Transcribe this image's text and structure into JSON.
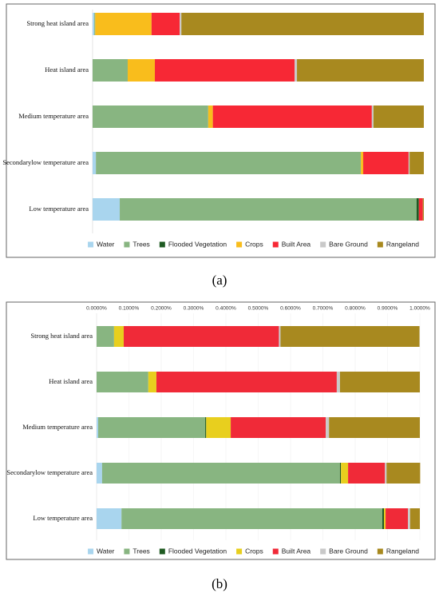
{
  "chart_data": [
    {
      "type": "bar",
      "orientation": "horizontal",
      "stacked": true,
      "caption": "(a)",
      "categories": [
        "Strong heat island area",
        "Heat island area",
        "Medium temperature area",
        "Secondarylow temperature area",
        "Low temperature area"
      ],
      "xlim": [
        0,
        100
      ],
      "series": [
        {
          "name": "Water",
          "color": "#a9d5ee",
          "values": [
            0.5,
            0,
            0,
            1,
            8.2
          ]
        },
        {
          "name": "Trees",
          "color": "#88b581",
          "values": [
            0.3,
            10.6,
            34.9,
            80,
            89.6
          ]
        },
        {
          "name": "Flooded Vegetation",
          "color": "#1f5a22",
          "values": [
            0,
            0,
            0,
            0,
            0.7
          ]
        },
        {
          "name": "Crops",
          "color": "#f9bd1c",
          "values": [
            17,
            8.2,
            1.4,
            0.7,
            0
          ]
        },
        {
          "name": "Built Area",
          "color": "#f72835",
          "values": [
            8.5,
            42.2,
            48,
            13.7,
            1.2
          ]
        },
        {
          "name": "Bare Ground",
          "color": "#c9c9c9",
          "values": [
            0.5,
            0.7,
            0.5,
            0.3,
            0
          ]
        },
        {
          "name": "Rangeland",
          "color": "#a8891f",
          "values": [
            73.2,
            38.3,
            15.2,
            4.3,
            0.3
          ]
        }
      ]
    },
    {
      "type": "bar",
      "orientation": "horizontal",
      "stacked": true,
      "caption": "(b)",
      "categories": [
        "Strong heat island area",
        "Heat island area",
        "Medium temperature area",
        "Secondarylow temperature area",
        "Low temperature area"
      ],
      "xlim": [
        0,
        1
      ],
      "xticks": [
        {
          "value": 0,
          "label": "0.0000%"
        },
        {
          "value": 0.1,
          "label": "0.1000%"
        },
        {
          "value": 0.2,
          "label": "0.2000%"
        },
        {
          "value": 0.3,
          "label": "0.3000%"
        },
        {
          "value": 0.4,
          "label": "0.4000%"
        },
        {
          "value": 0.5,
          "label": "0.5000%"
        },
        {
          "value": 0.6,
          "label": "0.6000%"
        },
        {
          "value": 0.7,
          "label": "0.7000%"
        },
        {
          "value": 0.8,
          "label": "0.8000%"
        },
        {
          "value": 0.9,
          "label": "0.9000%"
        },
        {
          "value": 1,
          "label": "1.0000%"
        }
      ],
      "series": [
        {
          "name": "Water",
          "color": "#a9d5ee",
          "values": [
            0,
            0,
            0.005,
            0.017,
            0.077
          ]
        },
        {
          "name": "Trees",
          "color": "#88b581",
          "values": [
            0.054,
            0.16,
            0.331,
            0.736,
            0.807
          ]
        },
        {
          "name": "Flooded Vegetation",
          "color": "#1f5a22",
          "values": [
            0,
            0,
            0.003,
            0.003,
            0.005
          ]
        },
        {
          "name": "Crops",
          "color": "#e8cf1e",
          "values": [
            0.03,
            0.025,
            0.076,
            0.022,
            0.005
          ]
        },
        {
          "name": "Built Area",
          "color": "#f02a38",
          "values": [
            0.48,
            0.558,
            0.294,
            0.114,
            0.069
          ]
        },
        {
          "name": "Bare Ground",
          "color": "#c9c9c9",
          "values": [
            0.005,
            0.01,
            0.01,
            0.005,
            0.007
          ]
        },
        {
          "name": "Rangeland",
          "color": "#a8891f",
          "values": [
            0.43,
            0.247,
            0.281,
            0.104,
            0.03
          ]
        }
      ]
    }
  ]
}
